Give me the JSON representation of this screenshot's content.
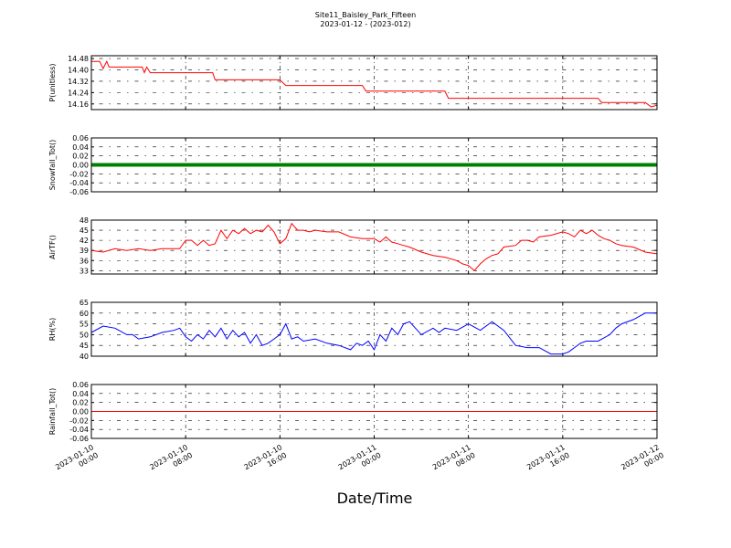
{
  "chart_data": {
    "type": "line",
    "title": "Site11_Baisley_Park_Fifteen",
    "subtitle": "2023-01-12 - (2023-012)",
    "xlabel": "Date/Time",
    "x_ticks": [
      {
        "line1": "2023-01-10",
        "line2": "00:00"
      },
      {
        "line1": "2023-01-10",
        "line2": "08:00"
      },
      {
        "line1": "2023-01-10",
        "line2": "16:00"
      },
      {
        "line1": "2023-01-11",
        "line2": "00:00"
      },
      {
        "line1": "2023-01-11",
        "line2": "08:00"
      },
      {
        "line1": "2023-01-11",
        "line2": "16:00"
      },
      {
        "line1": "2023-01-12",
        "line2": "00:00"
      }
    ],
    "x_range_hours": [
      0,
      48
    ],
    "grid": true,
    "panels": [
      {
        "ylabel": "P(unitless)",
        "ylim": [
          14.12,
          14.5
        ],
        "yticks": [
          "14.16",
          "14.24",
          "14.32",
          "14.40",
          "14.48"
        ],
        "ytick_values": [
          14.16,
          14.24,
          14.32,
          14.4,
          14.48
        ],
        "series": [
          {
            "color": "#ff0000",
            "marker": false,
            "x": [
              0,
              0.7,
              1.0,
              1.3,
              1.5,
              2.0,
              4.3,
              4.5,
              4.7,
              5.0,
              6.0,
              10.3,
              10.5,
              16.0,
              16.5,
              23.0,
              23.3,
              30.0,
              30.3,
              40.0,
              43.0,
              43.3,
              46.0,
              47.0,
              47.5,
              48.0
            ],
            "y": [
              14.46,
              14.46,
              14.41,
              14.46,
              14.42,
              14.42,
              14.42,
              14.38,
              14.42,
              14.38,
              14.38,
              14.38,
              14.33,
              14.33,
              14.29,
              14.29,
              14.25,
              14.25,
              14.2,
              14.2,
              14.2,
              14.17,
              14.17,
              14.17,
              14.14,
              14.15
            ]
          }
        ]
      },
      {
        "ylabel": "Snowfall_Tot()",
        "ylim": [
          -0.06,
          0.06
        ],
        "yticks": [
          "0.06",
          "0.04",
          "0.02",
          "0.00",
          "-0.02",
          "-0.04",
          "-0.06"
        ],
        "ytick_values": [
          0.06,
          0.04,
          0.02,
          0.0,
          -0.02,
          -0.04,
          -0.06
        ],
        "series": [
          {
            "color": "#008000",
            "marker": true,
            "x": [
              0,
              48
            ],
            "y": [
              0,
              0
            ]
          }
        ]
      },
      {
        "ylabel": "AirTF()",
        "ylim": [
          32,
          48
        ],
        "yticks": [
          "33",
          "36",
          "39",
          "42",
          "45",
          "48"
        ],
        "ytick_values": [
          33,
          36,
          39,
          42,
          45,
          48
        ],
        "series": [
          {
            "color": "#ff0000",
            "marker": false,
            "x": [
              0,
              1,
              2,
              3,
              4,
              5,
              6,
              7,
              7.5,
              8,
              8.5,
              9,
              9.5,
              10,
              10.5,
              11,
              11.5,
              12,
              12.5,
              13,
              13.5,
              14,
              14.5,
              15,
              15.5,
              16,
              16.5,
              17,
              17.5,
              18,
              18.5,
              19,
              20,
              21,
              22,
              23,
              24,
              24.5,
              25,
              25.5,
              26,
              26.5,
              27,
              28,
              29,
              30,
              31,
              31.5,
              32,
              32.5,
              33,
              33.5,
              34,
              34.5,
              35,
              36,
              36.5,
              37,
              37.5,
              38,
              39,
              40,
              40.5,
              41,
              41.5,
              42,
              42.5,
              43,
              43.5,
              44,
              44.5,
              45,
              46,
              47,
              48
            ],
            "y": [
              39,
              38.5,
              39.5,
              39,
              39.5,
              39,
              39.5,
              39.5,
              39.5,
              42,
              42,
              40.5,
              42,
              40.5,
              41,
              45,
              42.5,
              45,
              44,
              45.5,
              44,
              45,
              44.5,
              46.5,
              44.5,
              41,
              42.5,
              47,
              45,
              45,
              44.5,
              45,
              44.5,
              44.5,
              43,
              42.5,
              42.5,
              41.5,
              43,
              41.5,
              41,
              40.5,
              40,
              38.5,
              37.5,
              37,
              36,
              35,
              34.5,
              33,
              35,
              36.5,
              37.5,
              38,
              40,
              40.5,
              42,
              42,
              41.5,
              43,
              43.5,
              44.5,
              44,
              43,
              45,
              44,
              45,
              43.5,
              42.5,
              42,
              41,
              40.5,
              40,
              38.5,
              38
            ]
          }
        ]
      },
      {
        "ylabel": "RH(%)",
        "ylim": [
          40,
          65
        ],
        "yticks": [
          "40",
          "45",
          "50",
          "55",
          "60",
          "65"
        ],
        "ytick_values": [
          40,
          45,
          50,
          55,
          60,
          65
        ],
        "series": [
          {
            "color": "#0000ff",
            "marker": false,
            "x": [
              0,
              1,
              2,
              3,
              3.5,
              4,
              5,
              6,
              7,
              7.5,
              8,
              8.5,
              9,
              9.5,
              10,
              10.5,
              11,
              11.5,
              12,
              12.5,
              13,
              13.5,
              14,
              14.5,
              15,
              15.5,
              16,
              16.5,
              17,
              17.5,
              18,
              19,
              20,
              21,
              22,
              22.5,
              23,
              23.5,
              24,
              24.5,
              25,
              25.5,
              26,
              26.5,
              27,
              28,
              29,
              29.5,
              30,
              31,
              32,
              33,
              34,
              35,
              36,
              37,
              38,
              39,
              40,
              40.5,
              41,
              41.5,
              42,
              43,
              44,
              44.5,
              45,
              46,
              47,
              48
            ],
            "y": [
              51,
              54,
              53,
              50,
              50,
              48,
              49,
              51,
              52,
              53,
              49,
              47,
              50,
              48,
              52,
              49,
              53,
              48,
              52,
              49,
              51,
              46,
              50,
              45,
              46,
              48,
              50,
              55,
              48,
              49,
              47,
              48,
              46,
              45,
              43,
              46,
              45,
              47,
              43,
              50,
              47,
              53,
              50,
              55,
              56,
              50,
              53,
              51,
              53,
              52,
              55,
              52,
              56,
              52,
              45,
              44,
              44,
              41,
              41,
              42,
              44,
              46,
              47,
              47,
              50,
              53,
              55,
              57,
              60,
              60
            ]
          }
        ]
      },
      {
        "ylabel": "Rainfall_Tot()",
        "ylim": [
          -0.06,
          0.06
        ],
        "yticks": [
          "0.06",
          "0.04",
          "0.02",
          "0.00",
          "-0.02",
          "-0.04",
          "-0.06"
        ],
        "ytick_values": [
          0.06,
          0.04,
          0.02,
          0.0,
          -0.02,
          -0.04,
          -0.06
        ],
        "series": [
          {
            "color": "#ff0000",
            "marker": false,
            "x": [
              0,
              48
            ],
            "y": [
              0,
              0
            ]
          }
        ]
      }
    ]
  }
}
